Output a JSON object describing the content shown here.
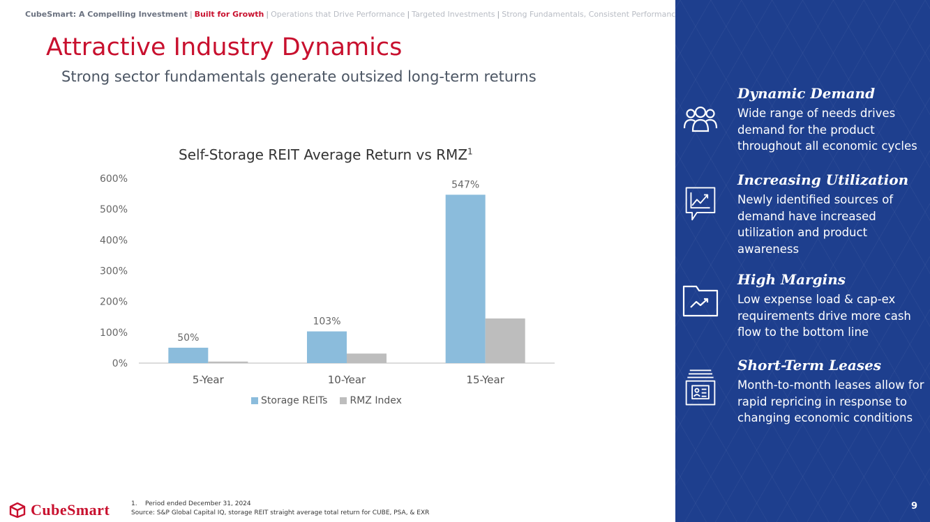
{
  "breadcrumb": {
    "first": "CubeSmart: A Compelling Investment",
    "active": "Built for Growth",
    "rest": [
      "Operations that Drive Performance",
      "Targeted Investments",
      "Strong Fundamentals, Consistent Performance"
    ],
    "separator": "|"
  },
  "header": {
    "title": "Attractive Industry Dynamics",
    "subtitle": "Strong sector fundamentals generate outsized long-term returns"
  },
  "chart_data": {
    "type": "bar",
    "title": "Self-Storage REIT Average Return vs RMZ",
    "title_superscript": "1",
    "categories": [
      "5-Year",
      "10-Year",
      "15-Year"
    ],
    "series": [
      {
        "name": "Storage REITs",
        "values": [
          50,
          103,
          547
        ],
        "labels": [
          "50%",
          "103%",
          "547%"
        ],
        "color": "#8bbcdc"
      },
      {
        "name": "RMZ Index",
        "values": [
          5,
          31,
          145
        ],
        "color": "#bdbdbd"
      }
    ],
    "ylim": [
      0,
      600
    ],
    "yticks": [
      "0%",
      "100%",
      "200%",
      "300%",
      "400%",
      "500%",
      "600%"
    ],
    "ytick_values": [
      0,
      100,
      200,
      300,
      400,
      500,
      600
    ],
    "grid": false,
    "legend": "bottom"
  },
  "features": [
    {
      "icon": "people-group-icon",
      "title": "Dynamic Demand",
      "text": "Wide range of needs drives demand for the product throughout all economic cycles"
    },
    {
      "icon": "chart-chat-icon",
      "title": "Increasing Utilization",
      "text": "Newly identified sources of demand have increased utilization and product awareness"
    },
    {
      "icon": "folder-chart-icon",
      "title": "High Margins",
      "text": "Low expense load & cap-ex requirements drive more cash flow to the bottom line"
    },
    {
      "icon": "file-drawer-icon",
      "title": "Short-Term Leases",
      "text": "Month-to-month leases allow for rapid repricing in response to changing economic conditions"
    }
  ],
  "footer": {
    "logo_text": "CubeSmart",
    "footnote": "1.    Period ended December 31, 2024",
    "source": "Source: S&P Global Capital IQ, storage REIT straight average total return for CUBE, PSA, & EXR",
    "page_number": "9"
  },
  "colors": {
    "brand_red": "#c8102e",
    "panel_blue": "#1e3f8e",
    "storage_bar": "#8bbcdc",
    "rmz_bar": "#bdbdbd"
  }
}
